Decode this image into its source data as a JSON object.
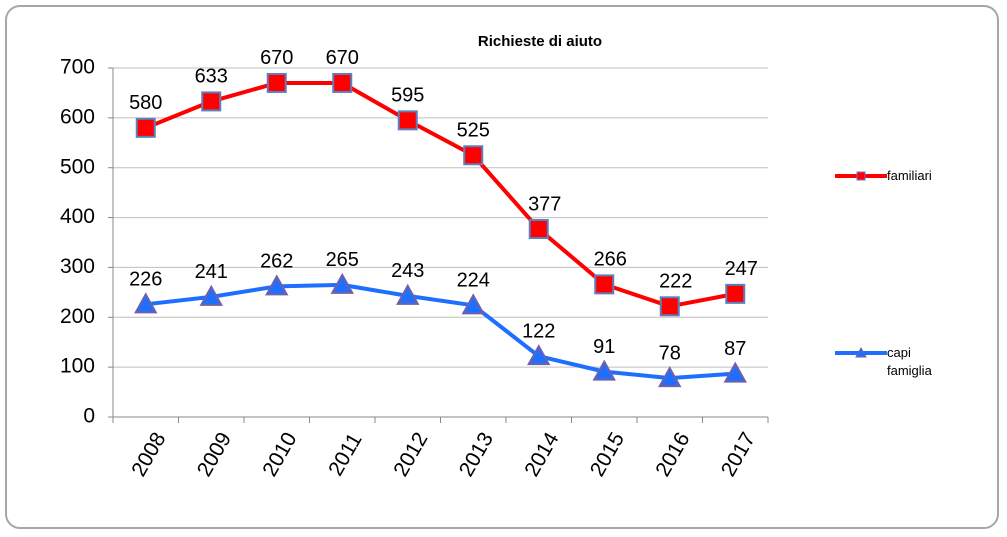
{
  "chart_data": {
    "type": "line",
    "title": "Richieste di aiuto",
    "categories": [
      "2008",
      "2009",
      "2010",
      "2011",
      "2012",
      "2013",
      "2014",
      "2015",
      "2016",
      "2017"
    ],
    "series": [
      {
        "name": "familiari",
        "color": "#ff0000",
        "marker": "square",
        "values": [
          580,
          633,
          670,
          670,
          595,
          525,
          377,
          266,
          222,
          247
        ]
      },
      {
        "name": "capi famiglia",
        "color": "#1e6fff",
        "marker": "triangle",
        "values": [
          226,
          241,
          262,
          265,
          243,
          224,
          122,
          91,
          78,
          87
        ]
      }
    ],
    "ylim": [
      0,
      700
    ],
    "yticks": [
      0,
      100,
      200,
      300,
      400,
      500,
      600,
      700
    ],
    "grid": true,
    "legend": "right"
  }
}
